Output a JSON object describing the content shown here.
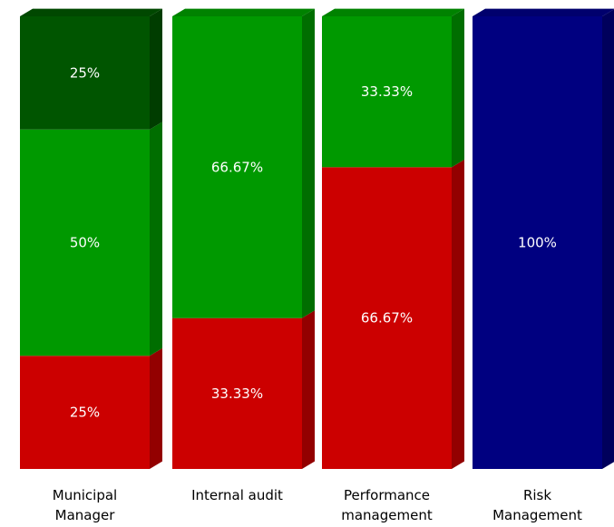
{
  "chart_data": {
    "type": "bar",
    "stacked": true,
    "percent_stacked": true,
    "three_d": true,
    "grid": false,
    "legend": "none",
    "title": "",
    "xlabel": "",
    "ylabel": "",
    "ylim": [
      0,
      100
    ],
    "categories": [
      [
        "Municipal",
        "Manager"
      ],
      [
        "Internal audit"
      ],
      [
        "Performance",
        "management"
      ],
      [
        "Risk",
        "Management"
      ]
    ],
    "bars": [
      {
        "segments": [
          {
            "value": 25,
            "label": "25%",
            "color": "#cc0000"
          },
          {
            "value": 50,
            "label": "50%",
            "color": "#009900"
          },
          {
            "value": 25,
            "label": "25%",
            "color": "#005500"
          }
        ]
      },
      {
        "segments": [
          {
            "value": 33.33,
            "label": "33.33%",
            "color": "#cc0000"
          },
          {
            "value": 66.67,
            "label": "66.67%",
            "color": "#009900"
          }
        ]
      },
      {
        "segments": [
          {
            "value": 66.67,
            "label": "66.67%",
            "color": "#cc0000"
          },
          {
            "value": 33.33,
            "label": "33.33%",
            "color": "#009900"
          }
        ]
      },
      {
        "segments": [
          {
            "value": 100,
            "label": "100%",
            "color": "#000080"
          }
        ]
      }
    ]
  }
}
